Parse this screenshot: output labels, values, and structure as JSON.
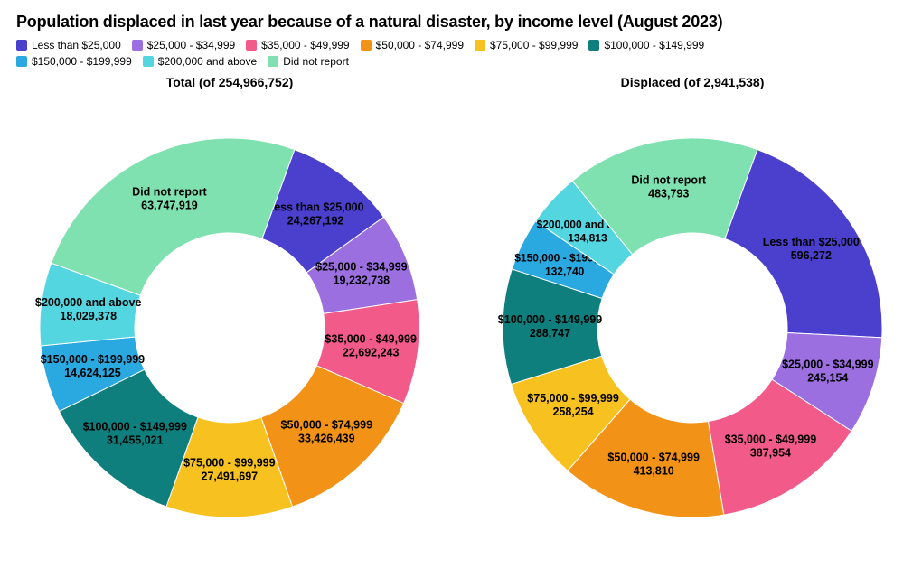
{
  "title": "Population displaced in last year because of a natural disaster, by income level (August 2023)",
  "title_fontsize": 18,
  "background_color": "#ffffff",
  "categories": [
    {
      "label": "Less than $25,000",
      "color": "#4b3fce"
    },
    {
      "label": "$25,000 - $34,999",
      "color": "#9b6fe0"
    },
    {
      "label": "$35,000 - $49,999",
      "color": "#f25a8a"
    },
    {
      "label": "$50,000 - $74,999",
      "color": "#f29217"
    },
    {
      "label": "$75,000 - $99,999",
      "color": "#f7c11f"
    },
    {
      "label": "$100,000 - $149,999",
      "color": "#0f7f7d"
    },
    {
      "label": "$150,000 - $199,999",
      "color": "#2aa8e0"
    },
    {
      "label": "$200,000 and above",
      "color": "#53d6e0"
    },
    {
      "label": "Did not report",
      "color": "#7fe0b0"
    }
  ],
  "charts": [
    {
      "id": "total",
      "title": "Total (of 254,966,752)",
      "type": "donut",
      "start_angle_deg": 20,
      "outer_radius": 210,
      "inner_radius": 105,
      "label_fontsize": 12.5,
      "stroke_color": "#ffffff",
      "stroke_width": 1,
      "slices": [
        {
          "label": "Less than $25,000",
          "value": 24267192,
          "value_str": "24,267,192"
        },
        {
          "label": "$25,000 - $34,999",
          "value": 19232738,
          "value_str": "19,232,738"
        },
        {
          "label": "$35,000 - $49,999",
          "value": 22692243,
          "value_str": "22,692,243"
        },
        {
          "label": "$50,000 - $74,999",
          "value": 33426439,
          "value_str": "33,426,439"
        },
        {
          "label": "$75,000 - $99,999",
          "value": 27491697,
          "value_str": "27,491,697"
        },
        {
          "label": "$100,000 - $149,999",
          "value": 31455021,
          "value_str": "31,455,021"
        },
        {
          "label": "$150,000 - $199,999",
          "value": 14624125,
          "value_str": "14,624,125"
        },
        {
          "label": "$200,000 and above",
          "value": 18029378,
          "value_str": "18,029,378"
        },
        {
          "label": "Did not report",
          "value": 63747919,
          "value_str": "63,747,919"
        }
      ]
    },
    {
      "id": "displaced",
      "title": "Displaced (of 2,941,538)",
      "type": "donut",
      "start_angle_deg": 20,
      "outer_radius": 210,
      "inner_radius": 105,
      "label_fontsize": 12.5,
      "stroke_color": "#ffffff",
      "stroke_width": 1,
      "slices": [
        {
          "label": "Less than $25,000",
          "value": 596272,
          "value_str": "596,272"
        },
        {
          "label": "$25,000 - $34,999",
          "value": 245154,
          "value_str": "245,154"
        },
        {
          "label": "$35,000 - $49,999",
          "value": 387954,
          "value_str": "387,954"
        },
        {
          "label": "$50,000 - $74,999",
          "value": 413810,
          "value_str": "413,810"
        },
        {
          "label": "$75,000 - $99,999",
          "value": 258254,
          "value_str": "258,254"
        },
        {
          "label": "$100,000 - $149,999",
          "value": 288747,
          "value_str": "288,747"
        },
        {
          "label": "$150,000 - $199,999",
          "value": 132740,
          "value_str": "132,740"
        },
        {
          "label": "$200,000 and above",
          "value": 134813,
          "value_str": "134,813"
        },
        {
          "label": "Did not report",
          "value": 483793,
          "value_str": "483,793"
        }
      ]
    }
  ]
}
